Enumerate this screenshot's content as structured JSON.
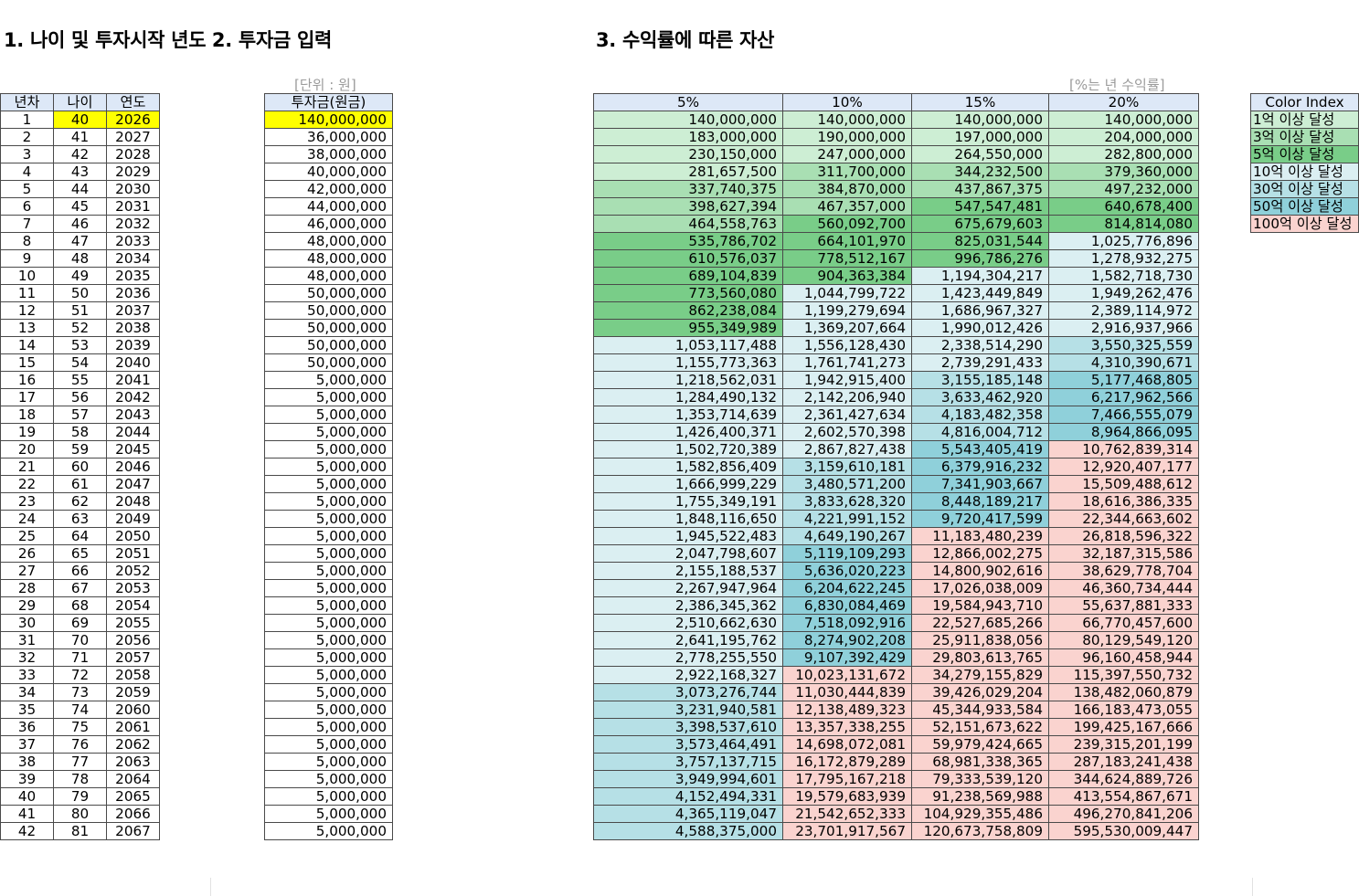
{
  "titles": {
    "section1": "1. 나이 및 투자시작 년도 \u001f2. 투자금 입력",
    "section3": "3. 수익률에 따른 자산"
  },
  "unit_notes": {
    "principal": "[단위 : 원]",
    "returns": "[%는 년 수익률]"
  },
  "age_table": {
    "headers": [
      "년차",
      "나이",
      "연도"
    ]
  },
  "principal_table": {
    "header": "투자금(원금)"
  },
  "returns_table": {
    "headers": [
      "5%",
      "10%",
      "15%",
      "20%"
    ]
  },
  "rows": [
    {
      "year_no": "1",
      "age": "40",
      "year": "2026",
      "principal": "140,000,000",
      "r5": "140,000,000",
      "r10": "140,000,000",
      "r15": "140,000,000",
      "r20": "140,000,000"
    },
    {
      "year_no": "2",
      "age": "41",
      "year": "2027",
      "principal": "36,000,000",
      "r5": "183,000,000",
      "r10": "190,000,000",
      "r15": "197,000,000",
      "r20": "204,000,000"
    },
    {
      "year_no": "3",
      "age": "42",
      "year": "2028",
      "principal": "38,000,000",
      "r5": "230,150,000",
      "r10": "247,000,000",
      "r15": "264,550,000",
      "r20": "282,800,000"
    },
    {
      "year_no": "4",
      "age": "43",
      "year": "2029",
      "principal": "40,000,000",
      "r5": "281,657,500",
      "r10": "311,700,000",
      "r15": "344,232,500",
      "r20": "379,360,000"
    },
    {
      "year_no": "5",
      "age": "44",
      "year": "2030",
      "principal": "42,000,000",
      "r5": "337,740,375",
      "r10": "384,870,000",
      "r15": "437,867,375",
      "r20": "497,232,000"
    },
    {
      "year_no": "6",
      "age": "45",
      "year": "2031",
      "principal": "44,000,000",
      "r5": "398,627,394",
      "r10": "467,357,000",
      "r15": "547,547,481",
      "r20": "640,678,400"
    },
    {
      "year_no": "7",
      "age": "46",
      "year": "2032",
      "principal": "46,000,000",
      "r5": "464,558,763",
      "r10": "560,092,700",
      "r15": "675,679,603",
      "r20": "814,814,080"
    },
    {
      "year_no": "8",
      "age": "47",
      "year": "2033",
      "principal": "48,000,000",
      "r5": "535,786,702",
      "r10": "664,101,970",
      "r15": "825,031,544",
      "r20": "1,025,776,896"
    },
    {
      "year_no": "9",
      "age": "48",
      "year": "2034",
      "principal": "48,000,000",
      "r5": "610,576,037",
      "r10": "778,512,167",
      "r15": "996,786,276",
      "r20": "1,278,932,275"
    },
    {
      "year_no": "10",
      "age": "49",
      "year": "2035",
      "principal": "48,000,000",
      "r5": "689,104,839",
      "r10": "904,363,384",
      "r15": "1,194,304,217",
      "r20": "1,582,718,730"
    },
    {
      "year_no": "11",
      "age": "50",
      "year": "2036",
      "principal": "50,000,000",
      "r5": "773,560,080",
      "r10": "1,044,799,722",
      "r15": "1,423,449,849",
      "r20": "1,949,262,476"
    },
    {
      "year_no": "12",
      "age": "51",
      "year": "2037",
      "principal": "50,000,000",
      "r5": "862,238,084",
      "r10": "1,199,279,694",
      "r15": "1,686,967,327",
      "r20": "2,389,114,972"
    },
    {
      "year_no": "13",
      "age": "52",
      "year": "2038",
      "principal": "50,000,000",
      "r5": "955,349,989",
      "r10": "1,369,207,664",
      "r15": "1,990,012,426",
      "r20": "2,916,937,966"
    },
    {
      "year_no": "14",
      "age": "53",
      "year": "2039",
      "principal": "50,000,000",
      "r5": "1,053,117,488",
      "r10": "1,556,128,430",
      "r15": "2,338,514,290",
      "r20": "3,550,325,559"
    },
    {
      "year_no": "15",
      "age": "54",
      "year": "2040",
      "principal": "50,000,000",
      "r5": "1,155,773,363",
      "r10": "1,761,741,273",
      "r15": "2,739,291,433",
      "r20": "4,310,390,671"
    },
    {
      "year_no": "16",
      "age": "55",
      "year": "2041",
      "principal": "5,000,000",
      "r5": "1,218,562,031",
      "r10": "1,942,915,400",
      "r15": "3,155,185,148",
      "r20": "5,177,468,805"
    },
    {
      "year_no": "17",
      "age": "56",
      "year": "2042",
      "principal": "5,000,000",
      "r5": "1,284,490,132",
      "r10": "2,142,206,940",
      "r15": "3,633,462,920",
      "r20": "6,217,962,566"
    },
    {
      "year_no": "18",
      "age": "57",
      "year": "2043",
      "principal": "5,000,000",
      "r5": "1,353,714,639",
      "r10": "2,361,427,634",
      "r15": "4,183,482,358",
      "r20": "7,466,555,079"
    },
    {
      "year_no": "19",
      "age": "58",
      "year": "2044",
      "principal": "5,000,000",
      "r5": "1,426,400,371",
      "r10": "2,602,570,398",
      "r15": "4,816,004,712",
      "r20": "8,964,866,095"
    },
    {
      "year_no": "20",
      "age": "59",
      "year": "2045",
      "principal": "5,000,000",
      "r5": "1,502,720,389",
      "r10": "2,867,827,438",
      "r15": "5,543,405,419",
      "r20": "10,762,839,314"
    },
    {
      "year_no": "21",
      "age": "60",
      "year": "2046",
      "principal": "5,000,000",
      "r5": "1,582,856,409",
      "r10": "3,159,610,181",
      "r15": "6,379,916,232",
      "r20": "12,920,407,177"
    },
    {
      "year_no": "22",
      "age": "61",
      "year": "2047",
      "principal": "5,000,000",
      "r5": "1,666,999,229",
      "r10": "3,480,571,200",
      "r15": "7,341,903,667",
      "r20": "15,509,488,612"
    },
    {
      "year_no": "23",
      "age": "62",
      "year": "2048",
      "principal": "5,000,000",
      "r5": "1,755,349,191",
      "r10": "3,833,628,320",
      "r15": "8,448,189,217",
      "r20": "18,616,386,335"
    },
    {
      "year_no": "24",
      "age": "63",
      "year": "2049",
      "principal": "5,000,000",
      "r5": "1,848,116,650",
      "r10": "4,221,991,152",
      "r15": "9,720,417,599",
      "r20": "22,344,663,602"
    },
    {
      "year_no": "25",
      "age": "64",
      "year": "2050",
      "principal": "5,000,000",
      "r5": "1,945,522,483",
      "r10": "4,649,190,267",
      "r15": "11,183,480,239",
      "r20": "26,818,596,322"
    },
    {
      "year_no": "26",
      "age": "65",
      "year": "2051",
      "principal": "5,000,000",
      "r5": "2,047,798,607",
      "r10": "5,119,109,293",
      "r15": "12,866,002,275",
      "r20": "32,187,315,586"
    },
    {
      "year_no": "27",
      "age": "66",
      "year": "2052",
      "principal": "5,000,000",
      "r5": "2,155,188,537",
      "r10": "5,636,020,223",
      "r15": "14,800,902,616",
      "r20": "38,629,778,704"
    },
    {
      "year_no": "28",
      "age": "67",
      "year": "2053",
      "principal": "5,000,000",
      "r5": "2,267,947,964",
      "r10": "6,204,622,245",
      "r15": "17,026,038,009",
      "r20": "46,360,734,444"
    },
    {
      "year_no": "29",
      "age": "68",
      "year": "2054",
      "principal": "5,000,000",
      "r5": "2,386,345,362",
      "r10": "6,830,084,469",
      "r15": "19,584,943,710",
      "r20": "55,637,881,333"
    },
    {
      "year_no": "30",
      "age": "69",
      "year": "2055",
      "principal": "5,000,000",
      "r5": "2,510,662,630",
      "r10": "7,518,092,916",
      "r15": "22,527,685,266",
      "r20": "66,770,457,600"
    },
    {
      "year_no": "31",
      "age": "70",
      "year": "2056",
      "principal": "5,000,000",
      "r5": "2,641,195,762",
      "r10": "8,274,902,208",
      "r15": "25,911,838,056",
      "r20": "80,129,549,120"
    },
    {
      "year_no": "32",
      "age": "71",
      "year": "2057",
      "principal": "5,000,000",
      "r5": "2,778,255,550",
      "r10": "9,107,392,429",
      "r15": "29,803,613,765",
      "r20": "96,160,458,944"
    },
    {
      "year_no": "33",
      "age": "72",
      "year": "2058",
      "principal": "5,000,000",
      "r5": "2,922,168,327",
      "r10": "10,023,131,672",
      "r15": "34,279,155,829",
      "r20": "115,397,550,732"
    },
    {
      "year_no": "34",
      "age": "73",
      "year": "2059",
      "principal": "5,000,000",
      "r5": "3,073,276,744",
      "r10": "11,030,444,839",
      "r15": "39,426,029,204",
      "r20": "138,482,060,879"
    },
    {
      "year_no": "35",
      "age": "74",
      "year": "2060",
      "principal": "5,000,000",
      "r5": "3,231,940,581",
      "r10": "12,138,489,323",
      "r15": "45,344,933,584",
      "r20": "166,183,473,055"
    },
    {
      "year_no": "36",
      "age": "75",
      "year": "2061",
      "principal": "5,000,000",
      "r5": "3,398,537,610",
      "r10": "13,357,338,255",
      "r15": "52,151,673,622",
      "r20": "199,425,167,666"
    },
    {
      "year_no": "37",
      "age": "76",
      "year": "2062",
      "principal": "5,000,000",
      "r5": "3,573,464,491",
      "r10": "14,698,072,081",
      "r15": "59,979,424,665",
      "r20": "239,315,201,199"
    },
    {
      "year_no": "38",
      "age": "77",
      "year": "2063",
      "principal": "5,000,000",
      "r5": "3,757,137,715",
      "r10": "16,172,879,289",
      "r15": "68,981,338,365",
      "r20": "287,183,241,438"
    },
    {
      "year_no": "39",
      "age": "78",
      "year": "2064",
      "principal": "5,000,000",
      "r5": "3,949,994,601",
      "r10": "17,795,167,218",
      "r15": "79,333,539,120",
      "r20": "344,624,889,726"
    },
    {
      "year_no": "40",
      "age": "79",
      "year": "2065",
      "principal": "5,000,000",
      "r5": "4,152,494,331",
      "r10": "19,579,683,939",
      "r15": "91,238,569,988",
      "r20": "413,554,867,671"
    },
    {
      "year_no": "41",
      "age": "80",
      "year": "2066",
      "principal": "5,000,000",
      "r5": "4,365,119,047",
      "r10": "21,542,652,333",
      "r15": "104,929,355,486",
      "r20": "496,270,841,206"
    },
    {
      "year_no": "42",
      "age": "81",
      "year": "2067",
      "principal": "5,000,000",
      "r5": "4,588,375,000",
      "r10": "23,701,917,567",
      "r15": "120,673,758,809",
      "r20": "595,530,009,447"
    }
  ],
  "legend": {
    "title": "Color Index",
    "items": [
      {
        "label": "1억 이상 달성",
        "color": "#cdeed4"
      },
      {
        "label": "3억 이상 달성",
        "color": "#a9dfb3"
      },
      {
        "label": "5억 이상 달성",
        "color": "#79cd88"
      },
      {
        "label": "10억 이상 달성",
        "color": "#dbeff2"
      },
      {
        "label": "30억 이상 달성",
        "color": "#b6e0e6"
      },
      {
        "label": "50억 이상 달성",
        "color": "#8fd0da"
      },
      {
        "label": "100억 이상 달성",
        "color": "#fad3cf"
      }
    ]
  },
  "colors": {
    "header_fill": "#dde8f7",
    "input_highlight": "#ffff00"
  }
}
